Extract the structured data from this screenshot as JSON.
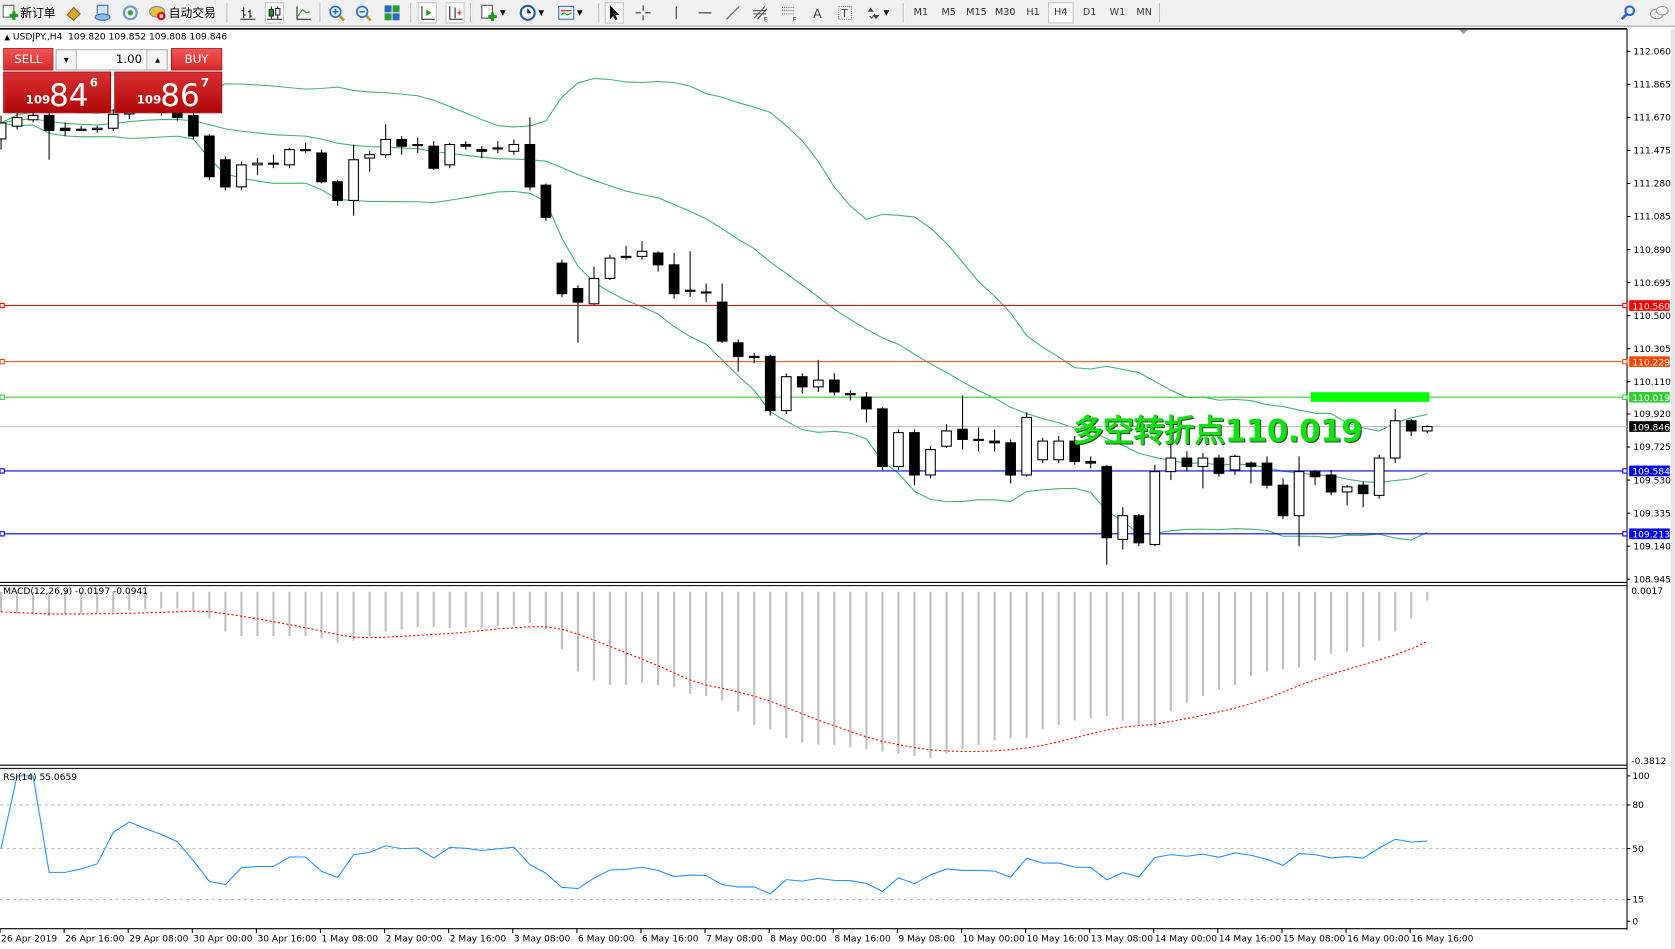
{
  "toolbar": {
    "new_order_label": "新订单",
    "auto_trading_label": "自动交易",
    "periods": [
      "M1",
      "M5",
      "M15",
      "M30",
      "H1",
      "H4",
      "D1",
      "W1",
      "MN"
    ],
    "active_period": "H4",
    "icons": [
      "new-order-icon",
      "market-watch-icon",
      "navigator-icon",
      "signals-icon",
      "auto-trading-icon",
      "bar-chart-icon",
      "candlesticks-icon",
      "line-chart-icon",
      "zoom-in-icon",
      "zoom-out-icon",
      "tile-windows-icon",
      "auto-scroll-icon",
      "chart-shift-icon",
      "indicators-icon",
      "periods-icon",
      "templates-icon",
      "cursor-icon",
      "crosshair-icon",
      "vertical-line-icon",
      "horizontal-line-icon",
      "trendline-icon",
      "fibonacci-expansion-icon",
      "fibonacci-fan-icon",
      "text-icon",
      "text-label-icon",
      "arrows-icon",
      "search-icon",
      "chat-icon"
    ]
  },
  "chart": {
    "symbol": "USDJPY.,H4",
    "ohlc": [
      "109.820",
      "109.852",
      "109.808",
      "109.846"
    ]
  },
  "trade_panel": {
    "sell_label": "SELL",
    "buy_label": "BUY",
    "lot": "1.00",
    "sell_price": {
      "prefix": "109",
      "big": "84",
      "sup": "6"
    },
    "buy_price": {
      "prefix": "109",
      "big": "86",
      "sup": "7"
    }
  },
  "annotation": "多空转折点110.019",
  "macd_label": "MACD(12,26,9) -0.0197 -0.0941",
  "rsi_label": "RSI(14) 55.0659",
  "chart_data": {
    "type": "candlestick",
    "price_axis_ticks": [
      "112.060",
      "111.865",
      "111.670",
      "111.475",
      "111.280",
      "111.085",
      "110.890",
      "110.695",
      "110.500",
      "110.305",
      "110.110",
      "109.920",
      "109.725",
      "109.530",
      "109.335",
      "109.140",
      "108.945"
    ],
    "price_range": [
      108.945,
      112.06
    ],
    "time_labels": [
      "26 Apr 2019",
      "26 Apr 16:00",
      "29 Apr 08:00",
      "30 Apr 00:00",
      "30 Apr 16:00",
      "1 May 08:00",
      "2 May 00:00",
      "2 May 16:00",
      "3 May 08:00",
      "6 May 00:00",
      "6 May 16:00",
      "7 May 08:00",
      "8 May 00:00",
      "8 May 16:00",
      "9 May 08:00",
      "10 May 00:00",
      "10 May 16:00",
      "13 May 08:00",
      "14 May 00:00",
      "14 May 16:00",
      "15 May 08:00",
      "16 May 00:00",
      "16 May 16:00"
    ],
    "candles_ohlc": [
      [
        111.543,
        111.68,
        111.48,
        111.637
      ],
      [
        111.618,
        111.7,
        111.6,
        111.669
      ],
      [
        111.656,
        111.72,
        111.64,
        111.682
      ],
      [
        111.682,
        111.72,
        111.42,
        111.593
      ],
      [
        111.606,
        111.64,
        111.56,
        111.593
      ],
      [
        111.6,
        111.62,
        111.59,
        111.598
      ],
      [
        111.598,
        111.62,
        111.58,
        111.606
      ],
      [
        111.606,
        111.72,
        111.59,
        111.688
      ],
      [
        111.69,
        111.76,
        111.66,
        111.74
      ],
      [
        111.74,
        111.77,
        111.7,
        111.72
      ],
      [
        111.72,
        111.75,
        111.68,
        111.7
      ],
      [
        111.7,
        111.73,
        111.65,
        111.67
      ],
      [
        111.68,
        111.7,
        111.54,
        111.56
      ],
      [
        111.56,
        111.57,
        111.3,
        111.32
      ],
      [
        111.42,
        111.44,
        111.24,
        111.26
      ],
      [
        111.26,
        111.41,
        111.24,
        111.39
      ],
      [
        111.39,
        111.43,
        111.33,
        111.4
      ],
      [
        111.4,
        111.45,
        111.37,
        111.4
      ],
      [
        111.39,
        111.49,
        111.37,
        111.48
      ],
      [
        111.48,
        111.52,
        111.46,
        111.48
      ],
      [
        111.46,
        111.48,
        111.28,
        111.29
      ],
      [
        111.29,
        111.3,
        111.15,
        111.18
      ],
      [
        111.18,
        111.51,
        111.09,
        111.42
      ],
      [
        111.43,
        111.47,
        111.35,
        111.45
      ],
      [
        111.45,
        111.63,
        111.43,
        111.54
      ],
      [
        111.54,
        111.56,
        111.45,
        111.5
      ],
      [
        111.51,
        111.55,
        111.46,
        111.51
      ],
      [
        111.5,
        111.53,
        111.36,
        111.37
      ],
      [
        111.39,
        111.52,
        111.37,
        111.51
      ],
      [
        111.51,
        111.53,
        111.48,
        111.5
      ],
      [
        111.48,
        111.5,
        111.43,
        111.47
      ],
      [
        111.49,
        111.53,
        111.46,
        111.49
      ],
      [
        111.47,
        111.54,
        111.45,
        111.51
      ],
      [
        111.51,
        111.67,
        111.24,
        111.26
      ],
      [
        111.27,
        111.28,
        111.06,
        111.08
      ],
      [
        110.81,
        110.83,
        110.61,
        110.63
      ],
      [
        110.66,
        110.68,
        110.34,
        110.58
      ],
      [
        110.57,
        110.79,
        110.56,
        110.72
      ],
      [
        110.72,
        110.86,
        110.71,
        110.84
      ],
      [
        110.85,
        110.91,
        110.83,
        110.85
      ],
      [
        110.85,
        110.94,
        110.83,
        110.88
      ],
      [
        110.87,
        110.88,
        110.76,
        110.8
      ],
      [
        110.8,
        110.87,
        110.6,
        110.63
      ],
      [
        110.65,
        110.88,
        110.61,
        110.65
      ],
      [
        110.64,
        110.69,
        110.58,
        110.64
      ],
      [
        110.58,
        110.69,
        110.34,
        110.35
      ],
      [
        110.34,
        110.36,
        110.17,
        110.26
      ],
      [
        110.26,
        110.28,
        110.22,
        110.26
      ],
      [
        110.26,
        110.27,
        109.91,
        109.94
      ],
      [
        109.94,
        110.16,
        109.92,
        110.14
      ],
      [
        110.14,
        110.16,
        110.04,
        110.08
      ],
      [
        110.08,
        110.24,
        110.05,
        110.12
      ],
      [
        110.12,
        110.16,
        110.03,
        110.05
      ],
      [
        110.04,
        110.06,
        110.0,
        110.04
      ],
      [
        110.02,
        110.05,
        109.87,
        109.95
      ],
      [
        109.95,
        109.96,
        109.59,
        109.61
      ],
      [
        109.61,
        109.83,
        109.59,
        109.81
      ],
      [
        109.81,
        109.83,
        109.5,
        109.56
      ],
      [
        109.56,
        109.73,
        109.54,
        109.71
      ],
      [
        109.73,
        109.86,
        109.72,
        109.82
      ],
      [
        109.83,
        110.03,
        109.71,
        109.77
      ],
      [
        109.77,
        109.84,
        109.7,
        109.77
      ],
      [
        109.76,
        109.83,
        109.7,
        109.75
      ],
      [
        109.75,
        109.77,
        109.51,
        109.56
      ],
      [
        109.56,
        109.93,
        109.55,
        109.9
      ],
      [
        109.65,
        109.78,
        109.63,
        109.76
      ],
      [
        109.65,
        109.79,
        109.63,
        109.76
      ],
      [
        109.76,
        109.79,
        109.62,
        109.64
      ],
      [
        109.64,
        109.67,
        109.6,
        109.63
      ],
      [
        109.61,
        109.62,
        109.03,
        109.19
      ],
      [
        109.18,
        109.37,
        109.12,
        109.32
      ],
      [
        109.32,
        109.33,
        109.14,
        109.16
      ],
      [
        109.15,
        109.62,
        109.14,
        109.58
      ],
      [
        109.58,
        109.74,
        109.53,
        109.66
      ],
      [
        109.66,
        109.7,
        109.58,
        109.61
      ],
      [
        109.61,
        109.69,
        109.48,
        109.66
      ],
      [
        109.66,
        109.68,
        109.55,
        109.57
      ],
      [
        109.59,
        109.68,
        109.56,
        109.67
      ],
      [
        109.63,
        109.64,
        109.51,
        109.61
      ],
      [
        109.63,
        109.67,
        109.48,
        109.5
      ],
      [
        109.5,
        109.54,
        109.3,
        109.32
      ],
      [
        109.32,
        109.67,
        109.14,
        109.58
      ],
      [
        109.58,
        109.59,
        109.5,
        109.55
      ],
      [
        109.56,
        109.59,
        109.44,
        109.46
      ],
      [
        109.46,
        109.5,
        109.38,
        109.49
      ],
      [
        109.5,
        109.52,
        109.37,
        109.45
      ],
      [
        109.44,
        109.68,
        109.42,
        109.66
      ],
      [
        109.66,
        109.95,
        109.63,
        109.88
      ],
      [
        109.88,
        109.89,
        109.79,
        109.82
      ],
      [
        109.82,
        109.852,
        109.808,
        109.846
      ]
    ],
    "bid": "109.846",
    "horizontal_lines": [
      {
        "price": "110.560",
        "color": "#ff0000"
      },
      {
        "price": "110.229",
        "color": "#ff4500"
      },
      {
        "price": "110.019",
        "color": "#32cd32"
      },
      {
        "price": "109.584",
        "color": "#0000ff"
      },
      {
        "price": "109.213",
        "color": "#0000ff"
      }
    ],
    "bollinger": {
      "period": 20,
      "deviation": 2,
      "color": "#3cb371"
    },
    "macd": {
      "axis_labels": [
        "0.0017",
        "-0.3812"
      ],
      "range": [
        -0.3812,
        0.0017
      ],
      "histogram": [
        -0.045,
        -0.05,
        -0.05,
        -0.055,
        -0.05,
        -0.05,
        -0.048,
        -0.046,
        -0.042,
        -0.04,
        -0.038,
        -0.038,
        -0.042,
        -0.06,
        -0.09,
        -0.1,
        -0.1,
        -0.1,
        -0.1,
        -0.1,
        -0.105,
        -0.115,
        -0.11,
        -0.1,
        -0.09,
        -0.085,
        -0.08,
        -0.08,
        -0.082,
        -0.08,
        -0.08,
        -0.078,
        -0.076,
        -0.07,
        -0.085,
        -0.13,
        -0.18,
        -0.2,
        -0.21,
        -0.21,
        -0.205,
        -0.21,
        -0.215,
        -0.23,
        -0.235,
        -0.245,
        -0.27,
        -0.3,
        -0.31,
        -0.33,
        -0.34,
        -0.345,
        -0.345,
        -0.35,
        -0.355,
        -0.36,
        -0.365,
        -0.37,
        -0.375,
        -0.365,
        -0.355,
        -0.345,
        -0.335,
        -0.33,
        -0.33,
        -0.31,
        -0.3,
        -0.29,
        -0.285,
        -0.28,
        -0.29,
        -0.3,
        -0.305,
        -0.27,
        -0.25,
        -0.235,
        -0.22,
        -0.21,
        -0.19,
        -0.18,
        -0.175,
        -0.17,
        -0.155,
        -0.14,
        -0.135,
        -0.125,
        -0.11,
        -0.09,
        -0.06,
        -0.0197
      ],
      "hist_color": "#c0c0c0",
      "signal_color": "#ff0000"
    },
    "rsi": {
      "axis_labels": [
        "100",
        "80",
        "50",
        "15",
        "0"
      ],
      "levels": [
        80,
        50,
        15
      ],
      "color": "#1e90ff"
    }
  }
}
